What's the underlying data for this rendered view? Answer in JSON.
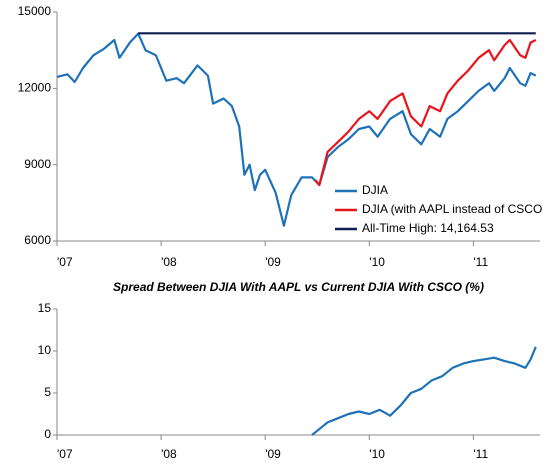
{
  "chart_data": [
    {
      "type": "line",
      "xlim": [
        2007,
        2011.64
      ],
      "ylim": [
        6000,
        15000
      ],
      "xticks": [
        {
          "value": 2007,
          "label": "'07"
        },
        {
          "value": 2008,
          "label": "'08"
        },
        {
          "value": 2009,
          "label": "'09"
        },
        {
          "value": 2010,
          "label": "'10"
        },
        {
          "value": 2011,
          "label": "'11"
        }
      ],
      "yticks": [
        6000,
        9000,
        12000,
        15000
      ],
      "legend": "lower-right",
      "series": [
        {
          "name": "DJIA",
          "color": "#1f72b8",
          "x": [
            2007.0,
            2007.1,
            2007.17,
            2007.25,
            2007.35,
            2007.45,
            2007.55,
            2007.6,
            2007.7,
            2007.78,
            2007.85,
            2007.95,
            2008.0,
            2008.05,
            2008.15,
            2008.22,
            2008.35,
            2008.45,
            2008.5,
            2008.6,
            2008.68,
            2008.75,
            2008.8,
            2008.85,
            2008.9,
            2008.95,
            2009.0,
            2009.1,
            2009.18,
            2009.25,
            2009.35,
            2009.45,
            2009.52,
            2009.6,
            2009.7,
            2009.8,
            2009.9,
            2010.0,
            2010.08,
            2010.2,
            2010.32,
            2010.4,
            2010.5,
            2010.58,
            2010.68,
            2010.75,
            2010.85,
            2010.95,
            2011.05,
            2011.15,
            2011.2,
            2011.3,
            2011.35,
            2011.45,
            2011.5,
            2011.55,
            2011.6
          ],
          "values": [
            12450,
            12550,
            12250,
            12800,
            13300,
            13550,
            13900,
            13200,
            13800,
            14150,
            13500,
            13300,
            12800,
            12300,
            12400,
            12200,
            12900,
            12500,
            11400,
            11600,
            11300,
            10500,
            8600,
            9000,
            8000,
            8600,
            8800,
            7900,
            6600,
            7800,
            8500,
            8500,
            8200,
            9300,
            9700,
            10000,
            10400,
            10500,
            10100,
            10800,
            11100,
            10200,
            9800,
            10400,
            10100,
            10800,
            11100,
            11500,
            11900,
            12200,
            11900,
            12400,
            12800,
            12200,
            12100,
            12600,
            12500
          ]
        },
        {
          "name": "DJIA (with AAPL instead of CSCO",
          "color": "#e8141b",
          "x": [
            2009.48,
            2009.52,
            2009.6,
            2009.7,
            2009.8,
            2009.9,
            2010.0,
            2010.08,
            2010.2,
            2010.32,
            2010.4,
            2010.5,
            2010.58,
            2010.68,
            2010.75,
            2010.85,
            2010.95,
            2011.05,
            2011.15,
            2011.2,
            2011.3,
            2011.35,
            2011.45,
            2011.5,
            2011.55,
            2011.6
          ],
          "values": [
            8400,
            8200,
            9500,
            9900,
            10300,
            10800,
            11100,
            10800,
            11500,
            11800,
            10900,
            10500,
            11300,
            11100,
            11800,
            12300,
            12700,
            13200,
            13500,
            13100,
            13700,
            13900,
            13300,
            13200,
            13800,
            13900
          ]
        },
        {
          "name": "All-Time High: 14,164.53",
          "color": "#0f1f4f",
          "x": [
            2007.78,
            2011.6
          ],
          "values": [
            14164.53,
            14164.53
          ]
        }
      ]
    },
    {
      "type": "line",
      "title": "Spread Between DJIA With AAPL vs Current DJIA With CSCO (%)",
      "xlim": [
        2007,
        2011.64
      ],
      "ylim": [
        0,
        15
      ],
      "xticks": [
        {
          "value": 2007,
          "label": "'07"
        },
        {
          "value": 2008,
          "label": "'08"
        },
        {
          "value": 2009,
          "label": "'09"
        },
        {
          "value": 2010,
          "label": "'10"
        },
        {
          "value": 2011,
          "label": "'11"
        }
      ],
      "yticks": [
        0,
        5,
        10,
        15
      ],
      "series": [
        {
          "color": "#1f72b8",
          "x": [
            2009.45,
            2009.5,
            2009.6,
            2009.7,
            2009.8,
            2009.9,
            2010.0,
            2010.1,
            2010.2,
            2010.3,
            2010.4,
            2010.5,
            2010.6,
            2010.7,
            2010.8,
            2010.9,
            2011.0,
            2011.1,
            2011.2,
            2011.3,
            2011.4,
            2011.5,
            2011.55,
            2011.6
          ],
          "values": [
            0,
            0.5,
            1.5,
            2,
            2.5,
            2.8,
            2.5,
            3,
            2.3,
            3.5,
            5,
            5.5,
            6.5,
            7,
            8,
            8.5,
            8.8,
            9,
            9.2,
            8.8,
            8.5,
            8,
            9,
            10.5
          ]
        }
      ]
    }
  ]
}
